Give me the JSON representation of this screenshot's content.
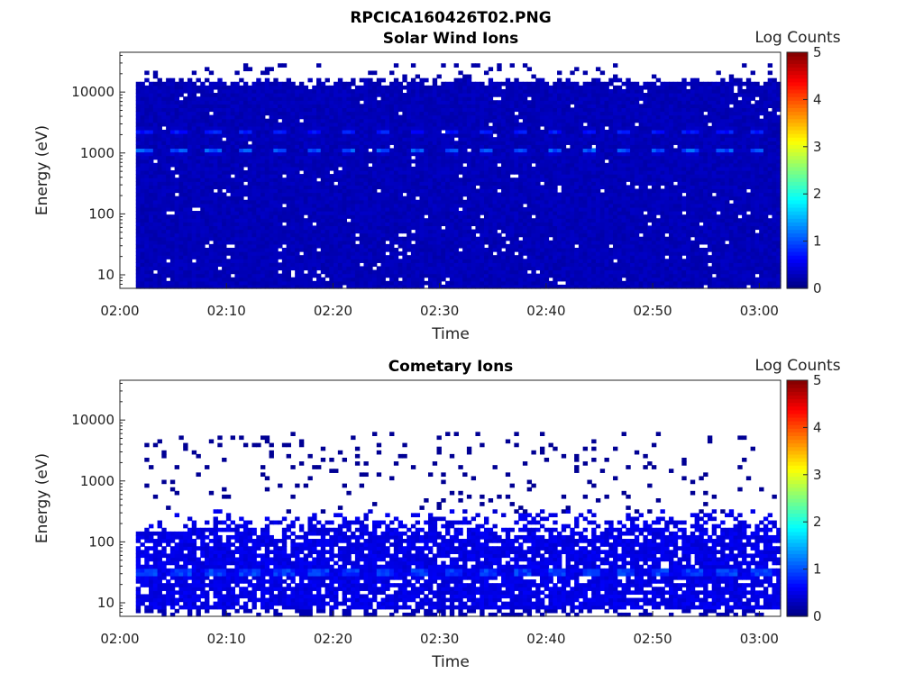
{
  "figure_title": "RPCICA160426T02.PNG",
  "chart_data": [
    {
      "type": "heatmap",
      "title": "Solar Wind Ions",
      "xlabel": "Time",
      "ylabel": "Energy (eV)",
      "x_ticks": [
        "02:00",
        "02:10",
        "02:20",
        "02:30",
        "02:40",
        "02:50",
        "03:00"
      ],
      "xlim": [
        "02:00",
        "03:02"
      ],
      "data_start": "02:01.5",
      "y_scale": "log",
      "ylim": [
        6,
        45000
      ],
      "y_ticks": [
        "10",
        "100",
        "1000",
        "10000"
      ],
      "colorbar": {
        "label": "Log Counts",
        "range": [
          0,
          5
        ],
        "ticks": [
          "0",
          "1",
          "2",
          "3",
          "4",
          "5"
        ]
      },
      "features": [
        {
          "name": "background",
          "energy_range_eV": [
            6,
            15000
          ],
          "log_counts": 0.2
        },
        {
          "name": "main beam",
          "energy_eV": 1100,
          "log_counts": 1.2,
          "periodicity_min": 3.2
        },
        {
          "name": "secondary beam",
          "energy_eV": 2300,
          "log_counts": 0.9,
          "periodicity_min": 3.2
        }
      ]
    },
    {
      "type": "heatmap",
      "title": "Cometary Ions",
      "xlabel": "Time",
      "ylabel": "Energy (eV)",
      "x_ticks": [
        "02:00",
        "02:10",
        "02:20",
        "02:30",
        "02:40",
        "02:50",
        "03:00"
      ],
      "xlim": [
        "02:00",
        "03:02"
      ],
      "data_start": "02:01.5",
      "y_scale": "log",
      "ylim": [
        6,
        45000
      ],
      "y_ticks": [
        "10",
        "100",
        "1000",
        "10000"
      ],
      "colorbar": {
        "label": "Log Counts",
        "range": [
          0,
          5
        ],
        "ticks": [
          "0",
          "1",
          "2",
          "3",
          "4",
          "5"
        ]
      },
      "features": [
        {
          "name": "low energy population",
          "energy_range_eV": [
            8,
            200
          ],
          "log_counts": 0.4
        },
        {
          "name": "peak band",
          "energy_eV": 32,
          "log_counts": 1.3,
          "periodicity_min": 3.2
        },
        {
          "name": "sporadic high energy",
          "energy_range_eV": [
            300,
            6000
          ],
          "log_counts": 0.1
        }
      ]
    }
  ]
}
